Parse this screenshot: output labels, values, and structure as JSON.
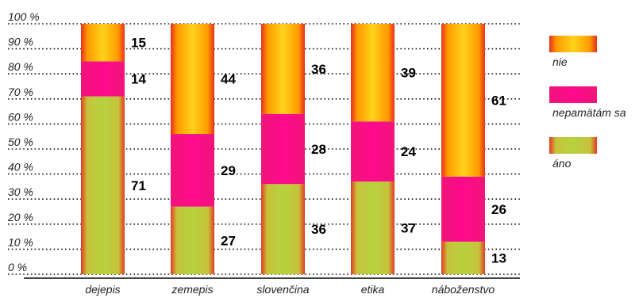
{
  "chart_data": {
    "type": "bar",
    "stacked": true,
    "percent": true,
    "title": "",
    "xlabel": "",
    "ylabel": "",
    "ylim": [
      0,
      100
    ],
    "yticks": [
      "0 %",
      "10 %",
      "20 %",
      "30 %",
      "40 %",
      "50 %",
      "60 %",
      "70 %",
      "80 %",
      "90 %",
      "100 %"
    ],
    "grid": "horizontal dotted",
    "legend_position": "right",
    "categories": [
      "dejepis",
      "zemepis",
      "slovenčina",
      "etika",
      "náboženstvo"
    ],
    "series": [
      {
        "name": "áno",
        "values": [
          71,
          27,
          36,
          37,
          13
        ],
        "color": "#b8d13a"
      },
      {
        "name": "nepamätám sa",
        "values": [
          14,
          29,
          28,
          24,
          26
        ],
        "color": "#ff0a8c"
      },
      {
        "name": "nie",
        "values": [
          15,
          44,
          36,
          39,
          61
        ],
        "color": "#ffbf00"
      }
    ],
    "legend_order": [
      "nie",
      "nepamätám sa",
      "áno"
    ]
  }
}
